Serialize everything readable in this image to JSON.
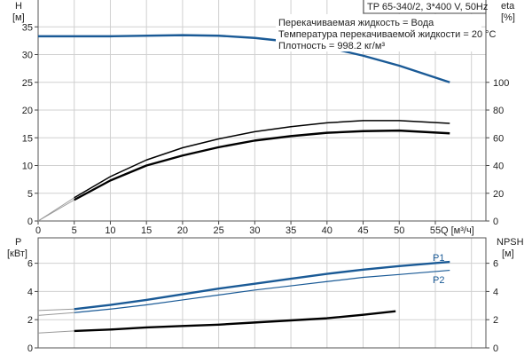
{
  "chart_data": [
    {
      "type": "line",
      "title": "TP 65-340/2, 3*400 V, 50Hz",
      "annotations": [
        "Перекачиваемая жидкость = Вода",
        "Температура перекачиваемой жидкости = 20 °C",
        "Плотность = 998.2 кг/м³"
      ],
      "xlabel": "Q [м³/ч]",
      "ylabel": "H",
      "ylabel_unit": "[м]",
      "y2label": "eta",
      "y2label_unit": "[%]",
      "xlim": [
        0,
        62
      ],
      "ylim": [
        0,
        40
      ],
      "y2lim": [
        0,
        160
      ],
      "xticks": [
        0,
        5,
        10,
        15,
        20,
        25,
        30,
        35,
        40,
        45,
        50,
        55
      ],
      "yticks": [
        0,
        5,
        10,
        15,
        20,
        25,
        30,
        35
      ],
      "y2ticks": [
        0,
        20,
        40,
        60,
        80,
        100
      ],
      "grid": true,
      "series": [
        {
          "axis": "left",
          "color": "#1a5a96",
          "x": [
            0,
            10,
            20,
            25,
            30,
            35,
            40,
            45,
            50,
            57
          ],
          "y": [
            33.3,
            33.3,
            33.5,
            33.4,
            33.0,
            32.3,
            31.3,
            29.8,
            28.0,
            25.0
          ]
        },
        {
          "axis": "right",
          "color": "#000000",
          "x": [
            0,
            5,
            10,
            15,
            20,
            25,
            30,
            35,
            40,
            45,
            50,
            57
          ],
          "y": [
            0,
            16.8,
            32,
            44,
            52.8,
            59.2,
            64.4,
            68,
            70.8,
            72.4,
            72.4,
            70.4
          ]
        },
        {
          "axis": "right",
          "color": "#000000",
          "x": [
            0,
            5,
            10,
            15,
            20,
            25,
            30,
            35,
            40,
            45,
            50,
            57
          ],
          "y": [
            0,
            15.2,
            29.2,
            40,
            47.2,
            53.2,
            58,
            61.2,
            63.6,
            64.8,
            65.2,
            63.2
          ]
        }
      ]
    },
    {
      "type": "line",
      "ylabel": "P",
      "ylabel_unit": "[кВт]",
      "y2label": "NPSH",
      "y2label_unit": "[м]",
      "xlim": [
        0,
        62
      ],
      "ylim": [
        0,
        7.8
      ],
      "y2lim": [
        0,
        7.8
      ],
      "yticks": [
        0,
        2,
        4,
        6
      ],
      "y2ticks": [
        0,
        2,
        4,
        6
      ],
      "grid": true,
      "series": [
        {
          "name": "P1",
          "axis": "left",
          "color": "#1a5a96",
          "x": [
            0,
            5,
            10,
            15,
            20,
            25,
            30,
            35,
            40,
            45,
            50,
            57
          ],
          "y": [
            2.65,
            2.75,
            3.05,
            3.4,
            3.8,
            4.2,
            4.55,
            4.9,
            5.25,
            5.55,
            5.8,
            6.1
          ]
        },
        {
          "name": "P2",
          "axis": "left",
          "color": "#1a5a96",
          "x": [
            0,
            5,
            10,
            15,
            20,
            25,
            30,
            35,
            40,
            45,
            50,
            57
          ],
          "y": [
            2.3,
            2.5,
            2.75,
            3.05,
            3.4,
            3.75,
            4.1,
            4.4,
            4.7,
            5.0,
            5.2,
            5.5
          ]
        },
        {
          "axis": "right",
          "color": "#000000",
          "x": [
            0,
            5,
            10,
            15,
            20,
            25,
            30,
            35,
            40,
            45,
            49.5
          ],
          "y": [
            1.05,
            1.2,
            1.3,
            1.45,
            1.55,
            1.65,
            1.8,
            1.95,
            2.1,
            2.35,
            2.6
          ]
        }
      ]
    }
  ]
}
